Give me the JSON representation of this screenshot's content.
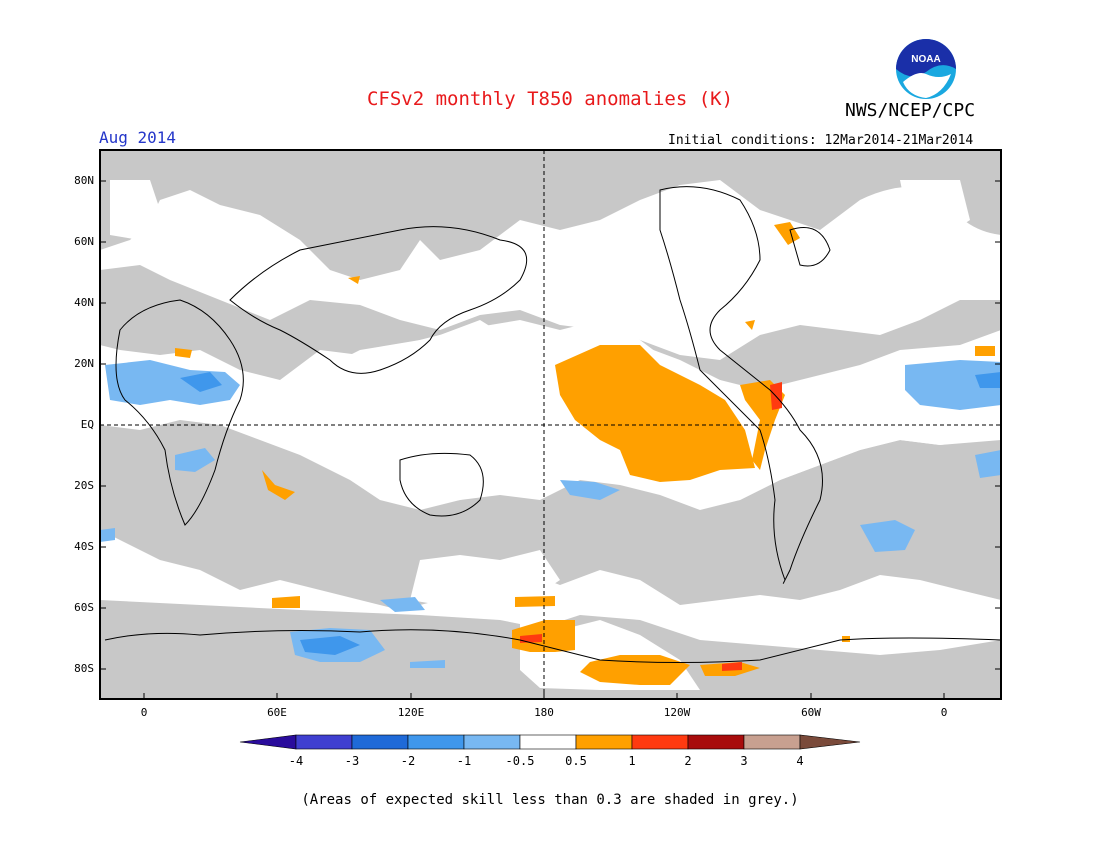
{
  "header": {
    "title": "CFSv2 monthly T850 anomalies (K)",
    "org": "NWS/NCEP/CPC",
    "logo_text": "NOAA",
    "month": "Aug 2014",
    "initial_conditions": "Initial conditions: 12Mar2014-21Mar2014"
  },
  "map": {
    "lat_labels": [
      "80N",
      "60N",
      "40N",
      "20N",
      "EQ",
      "20S",
      "40S",
      "60S",
      "80S"
    ],
    "lon_labels": [
      "0",
      "60E",
      "120E",
      "180",
      "120W",
      "60W",
      "0"
    ]
  },
  "colorbar": {
    "labels": [
      "-4",
      "-3",
      "-2",
      "-1",
      "-0.5",
      "0.5",
      "1",
      "2",
      "3",
      "4"
    ],
    "colors": [
      "#2a0c9c",
      "#3f3fd0",
      "#1f6ad8",
      "#3f97ec",
      "#78b8f2",
      "#ffffff",
      "#ffa000",
      "#ff3a10",
      "#a80c0c",
      "#c8a090",
      "#7a4a3a"
    ]
  },
  "colors": {
    "title": "#e8191b",
    "month": "#2436c9",
    "skill_grey": "#c8c8c8"
  },
  "note": "(Areas of expected skill less than 0.3 are shaded in grey.)"
}
